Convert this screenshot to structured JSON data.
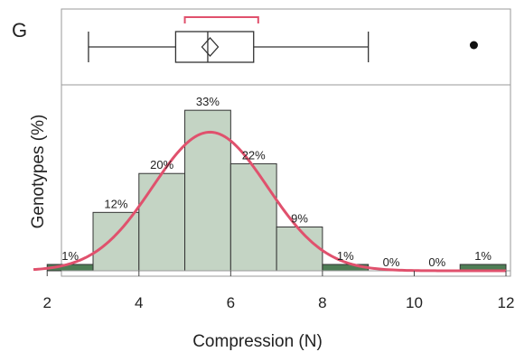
{
  "panel_label": "G",
  "chart_data": {
    "type": "bar",
    "xlabel": "Compression (N)",
    "ylabel": "Genotypes (%)",
    "xlim": [
      1.7,
      12
    ],
    "ylim": [
      0,
      36
    ],
    "xticks": [
      2,
      4,
      6,
      8,
      10,
      12
    ],
    "xtick_labels": [
      "2",
      "4",
      "6",
      "8",
      "10",
      "12"
    ],
    "bins": [
      {
        "start": 2,
        "end": 3,
        "value": 1,
        "label": "1%"
      },
      {
        "start": 3,
        "end": 4,
        "value": 12,
        "label": "12%"
      },
      {
        "start": 4,
        "end": 5,
        "value": 20,
        "label": "20%"
      },
      {
        "start": 5,
        "end": 6,
        "value": 33,
        "label": "33%"
      },
      {
        "start": 6,
        "end": 7,
        "value": 22,
        "label": "22%"
      },
      {
        "start": 7,
        "end": 8,
        "value": 9,
        "label": "9%"
      },
      {
        "start": 8,
        "end": 9,
        "value": 1,
        "label": "1%"
      },
      {
        "start": 9,
        "end": 10,
        "value": 0,
        "label": "0%"
      },
      {
        "start": 10,
        "end": 11,
        "value": 0,
        "label": "0%"
      },
      {
        "start": 11,
        "end": 12,
        "value": 1,
        "label": "1%"
      }
    ],
    "normal_curve": {
      "mean": 5.55,
      "sd": 1.25,
      "peak": 28.5
    },
    "boxplot": {
      "whisker_low": 2.9,
      "q1": 4.8,
      "median": 5.5,
      "q3": 6.5,
      "whisker_high": 9.0,
      "mean": 5.55,
      "mean_ci": [
        5.0,
        6.6
      ],
      "outliers": [
        11.3
      ]
    },
    "colors": {
      "bar_fill": "#c4d4c4",
      "bar_stroke": "#333333",
      "low_bar_fill": "#4e7d55",
      "curve": "#e0516d",
      "mean_bracket": "#e0516d",
      "frame": "#9a9a9a"
    },
    "grid": false,
    "legend": "none"
  }
}
